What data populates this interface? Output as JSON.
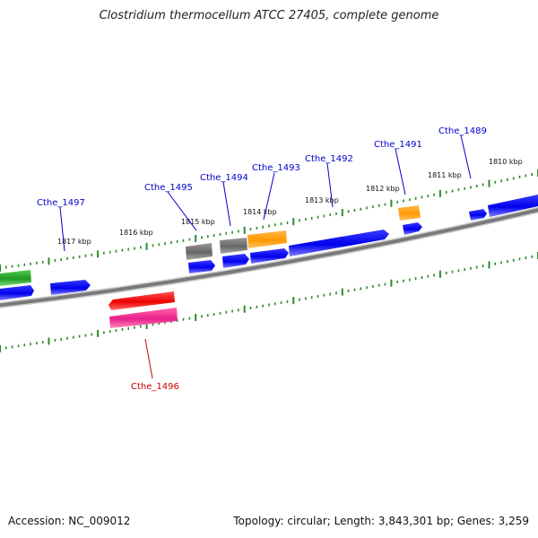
{
  "title": "Clostridium thermocellum ATCC 27405, complete genome",
  "footer": {
    "accession": "Accession: NC_009012",
    "summary": "Topology: circular; Length: 3,843,301 bp; Genes: 3,259"
  },
  "colors": {
    "forward_label": "#0000cc",
    "reverse_label": "#cc0000",
    "tick": "#2a8a2a",
    "backbone": "#888888",
    "blue": "#0000ee",
    "gray": "#777777",
    "orange": "#ff9900",
    "red": "#ff0000",
    "magenta": "#ee2288",
    "green": "#22aa22"
  },
  "kbp_labels": [
    "1810 kbp",
    "1811 kbp",
    "1812 kbp",
    "1813 kbp",
    "1814 kbp",
    "1815 kbp",
    "1816 kbp",
    "1817 kbp"
  ],
  "gene_labels": [
    {
      "name": "Cthe_1489",
      "strand": "forward"
    },
    {
      "name": "Cthe_1491",
      "strand": "forward"
    },
    {
      "name": "Cthe_1492",
      "strand": "forward"
    },
    {
      "name": "Cthe_1493",
      "strand": "forward"
    },
    {
      "name": "Cthe_1494",
      "strand": "forward"
    },
    {
      "name": "Cthe_1495",
      "strand": "forward"
    },
    {
      "name": "Cthe_1497",
      "strand": "forward"
    },
    {
      "name": "Cthe_1496",
      "strand": "reverse"
    }
  ]
}
